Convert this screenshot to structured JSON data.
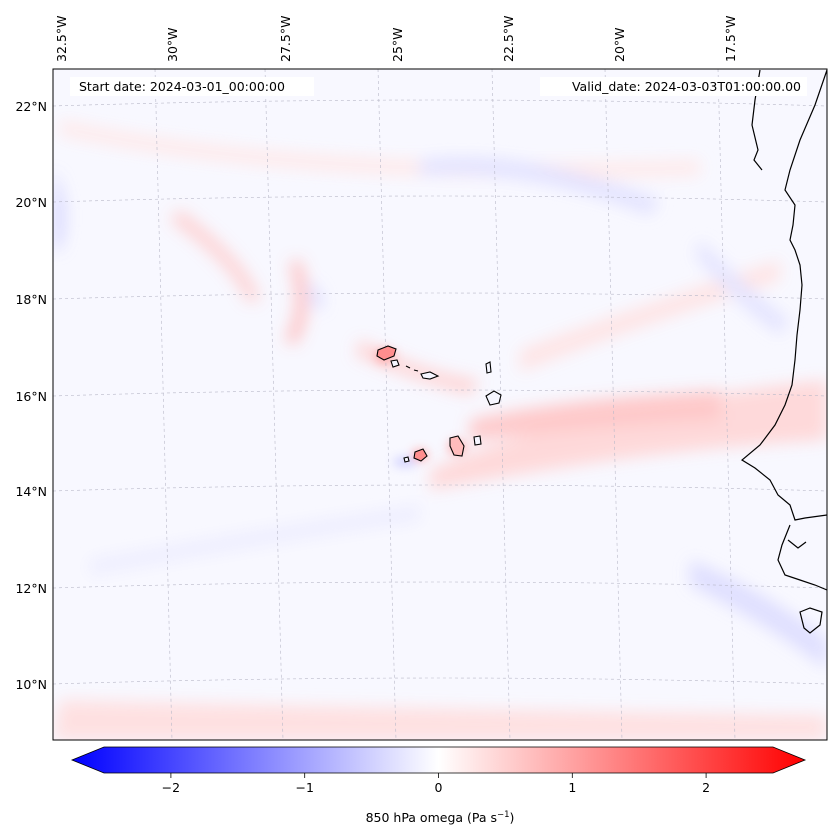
{
  "map": {
    "start_date_label": "Start date: 2024-03-01_00:00:00",
    "valid_date_label": "Valid_date: 2024-03-03T01:00:00.00",
    "lon_labels": [
      "32.5°W",
      "30°W",
      "27.5°W",
      "25°W",
      "22.5°W",
      "20°W",
      "17.5°W"
    ],
    "lat_labels": [
      "22°N",
      "20°N",
      "18°N",
      "16°N",
      "14°N",
      "12°N",
      "10°N"
    ],
    "field": "850 hPa omega",
    "colors": {
      "negative": "#0000ff",
      "positive": "#ff0000",
      "neutral": "#ffffff",
      "coastline": "#000000"
    }
  },
  "colorbar": {
    "ticks": [
      "−2",
      "−1",
      "0",
      "1",
      "2"
    ],
    "tick_values": [
      -2,
      -1,
      0,
      1,
      2
    ],
    "range": [
      -2.5,
      2.5
    ],
    "label_main": "850 hPa omega (Pa s",
    "label_sup": "−1",
    "label_close": ")"
  }
}
